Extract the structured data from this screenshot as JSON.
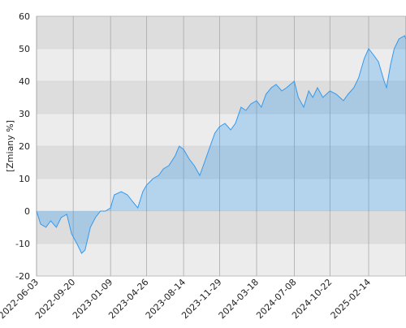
{
  "chart_data": {
    "type": "area",
    "ylabel": "[Zmiany %]",
    "x": [
      "2022-06-03",
      "2022-06-15",
      "2022-07-01",
      "2022-07-15",
      "2022-08-01",
      "2022-08-15",
      "2022-09-01",
      "2022-09-15",
      "2022-10-01",
      "2022-10-15",
      "2022-10-25",
      "2022-11-10",
      "2022-11-25",
      "2022-12-10",
      "2022-12-25",
      "2023-01-09",
      "2023-01-20",
      "2023-02-10",
      "2023-02-28",
      "2023-03-15",
      "2023-03-31",
      "2023-04-15",
      "2023-04-26",
      "2023-05-15",
      "2023-06-01",
      "2023-06-15",
      "2023-07-01",
      "2023-07-20",
      "2023-08-01",
      "2023-08-14",
      "2023-08-31",
      "2023-09-15",
      "2023-10-01",
      "2023-10-15",
      "2023-11-01",
      "2023-11-15",
      "2023-11-29",
      "2023-12-15",
      "2024-01-01",
      "2024-01-15",
      "2024-02-01",
      "2024-02-15",
      "2024-03-01",
      "2024-03-18",
      "2024-04-01",
      "2024-04-15",
      "2024-05-01",
      "2024-05-15",
      "2024-06-01",
      "2024-06-15",
      "2024-07-08",
      "2024-07-20",
      "2024-08-05",
      "2024-08-20",
      "2024-09-01",
      "2024-09-15",
      "2024-10-01",
      "2024-10-22",
      "2024-11-10",
      "2024-12-01",
      "2024-12-15",
      "2025-01-01",
      "2025-01-15",
      "2025-02-01",
      "2025-02-14",
      "2025-03-01",
      "2025-03-15",
      "2025-04-01",
      "2025-04-08",
      "2025-04-20",
      "2025-05-01",
      "2025-05-15",
      "2025-06-01",
      "2025-06-05"
    ],
    "values": [
      0,
      -4,
      -5,
      -3,
      -5,
      -2,
      -1,
      -7,
      -10,
      -13,
      -12,
      -5,
      -2,
      0,
      0,
      1,
      5,
      6,
      5,
      3,
      1,
      6,
      8,
      10,
      11,
      13,
      14,
      17,
      20,
      19,
      16,
      14,
      11,
      15,
      20,
      24,
      26,
      27,
      25,
      27,
      32,
      31,
      33,
      34,
      32,
      36,
      38,
      39,
      37,
      38,
      40,
      35,
      32,
      37,
      35,
      38,
      35,
      37,
      36,
      34,
      36,
      38,
      41,
      47,
      50,
      48,
      46,
      40,
      38,
      45,
      50,
      53,
      54,
      53
    ],
    "color": "#3399ee",
    "xlim": [
      "2022-06-03",
      "2025-06-05"
    ],
    "xticks": [
      "2022-06-03",
      "2022-09-20",
      "2023-01-09",
      "2023-04-26",
      "2023-08-14",
      "2023-11-29",
      "2024-03-18",
      "2024-07-08",
      "2024-10-22",
      "2025-02-14"
    ],
    "ylim": [
      -20,
      60
    ],
    "yticks": [
      -20,
      -10,
      0,
      10,
      20,
      30,
      40,
      50,
      60
    ],
    "grid": true
  }
}
